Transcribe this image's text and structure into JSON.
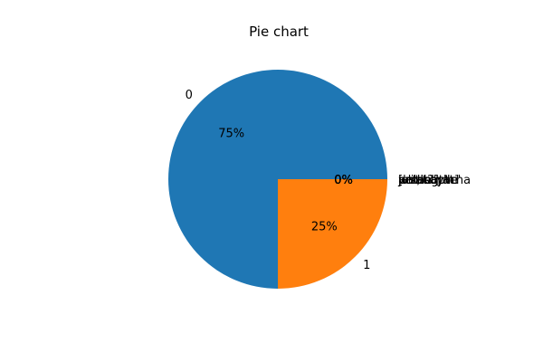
{
  "chart_data": {
    "type": "pie",
    "title": "Pie chart",
    "start_angle_deg": 0,
    "direction": "counterclockwise",
    "slices": [
      {
        "label": "0",
        "value": 75,
        "pct_label": "75%",
        "color": "#1f77b4"
      },
      {
        "label": "1",
        "value": 25,
        "pct_label": "25%",
        "color": "#ff7f0e"
      },
      {
        "label": "['a','b']",
        "value": 0,
        "pct_label": "0%",
        "color": "#2ca02c"
      },
      {
        "label": "acrecaptcha",
        "value": 0,
        "pct_label": "0%",
        "color": "#d62728"
      },
      {
        "label": "ja the",
        "value": 0,
        "pct_label": "0%",
        "color": "#9467bd"
      },
      {
        "label": "just say'hi'",
        "value": 0,
        "pct_label": "0%",
        "color": "#8c564b"
      },
      {
        "label": "pricing at",
        "value": 0,
        "pct_label": "0%",
        "color": "#e377c2"
      },
      {
        "label": "what?\"the",
        "value": 0,
        "pct_label": "0%",
        "color": "#7f7f7f"
      }
    ],
    "legend": "none"
  }
}
